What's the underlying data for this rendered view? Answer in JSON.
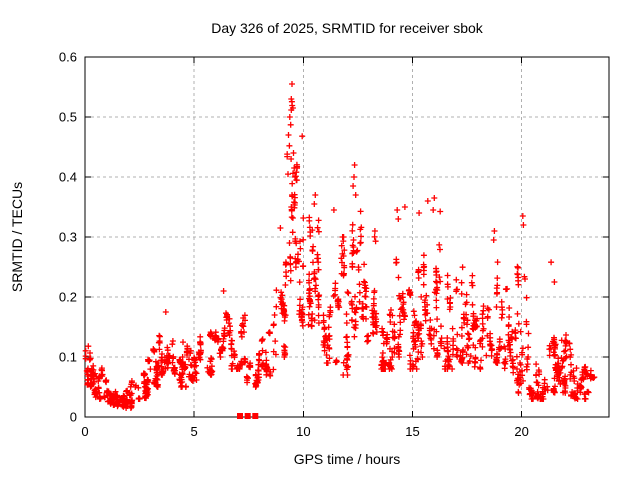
{
  "window": {
    "background": "#ffffff"
  },
  "chart_data": {
    "type": "scatter",
    "title": "Day 326 of 2025, SRMTID for receiver sbok",
    "xlabel": "GPS time / hours",
    "ylabel": "SRMTID / TECUs",
    "xlim": [
      0,
      24
    ],
    "ylim": [
      0,
      0.6
    ],
    "xtick_values": [
      0,
      5,
      10,
      15,
      20
    ],
    "xtick_labels": [
      "0",
      "5",
      "10",
      "15",
      "20"
    ],
    "ytick_values": [
      0,
      0.1,
      0.2,
      0.3,
      0.4,
      0.5,
      0.6
    ],
    "ytick_labels": [
      "0",
      "0.1",
      "0.2",
      "0.3",
      "0.4",
      "0.5",
      "0.6"
    ],
    "grid": {
      "show": true,
      "color": "#b0b0b0",
      "dash": "3,3"
    },
    "frame_color": "#000000",
    "marker": {
      "shape": "plus",
      "size": 7,
      "stroke_width": 1.3,
      "color": "#ff0000"
    },
    "flagged_zero_x": [
      7.1,
      7.45,
      7.8
    ],
    "seed": 326,
    "bin_format": "[hour_start, hour_end, point_count, y_min, y_max] estimated from plot",
    "density_bins": [
      [
        0.0,
        0.3,
        35,
        0.045,
        0.115
      ],
      [
        0.3,
        0.8,
        55,
        0.03,
        0.095
      ],
      [
        0.8,
        1.5,
        70,
        0.02,
        0.075
      ],
      [
        1.5,
        2.3,
        70,
        0.015,
        0.06
      ],
      [
        2.3,
        2.9,
        45,
        0.03,
        0.085
      ],
      [
        2.9,
        3.4,
        45,
        0.05,
        0.125
      ],
      [
        3.4,
        4.1,
        55,
        0.07,
        0.175
      ],
      [
        4.1,
        4.7,
        45,
        0.05,
        0.125
      ],
      [
        4.7,
        5.4,
        45,
        0.06,
        0.135
      ],
      [
        5.4,
        6.0,
        40,
        0.07,
        0.15
      ],
      [
        6.0,
        6.7,
        45,
        0.1,
        0.21
      ],
      [
        6.7,
        7.4,
        45,
        0.08,
        0.18
      ],
      [
        7.4,
        8.1,
        40,
        0.05,
        0.16
      ],
      [
        8.1,
        8.7,
        35,
        0.06,
        0.18
      ],
      [
        8.7,
        9.2,
        35,
        0.1,
        0.32
      ],
      [
        9.2,
        9.75,
        50,
        0.22,
        0.55
      ],
      [
        9.75,
        10.35,
        55,
        0.15,
        0.36
      ],
      [
        10.35,
        10.9,
        40,
        0.13,
        0.37
      ],
      [
        10.9,
        11.6,
        50,
        0.09,
        0.27
      ],
      [
        11.6,
        12.15,
        45,
        0.07,
        0.3
      ],
      [
        12.15,
        12.75,
        50,
        0.13,
        0.42
      ],
      [
        12.75,
        13.35,
        45,
        0.1,
        0.31
      ],
      [
        13.35,
        14.05,
        50,
        0.08,
        0.26
      ],
      [
        14.05,
        14.65,
        45,
        0.1,
        0.34
      ],
      [
        14.65,
        15.25,
        45,
        0.08,
        0.3
      ],
      [
        15.25,
        15.85,
        45,
        0.1,
        0.35
      ],
      [
        15.85,
        16.35,
        40,
        0.1,
        0.37
      ],
      [
        16.35,
        17.05,
        50,
        0.08,
        0.3
      ],
      [
        17.05,
        17.75,
        45,
        0.09,
        0.26
      ],
      [
        17.75,
        18.45,
        45,
        0.08,
        0.29
      ],
      [
        18.45,
        19.05,
        40,
        0.09,
        0.31
      ],
      [
        19.05,
        19.75,
        45,
        0.07,
        0.22
      ],
      [
        19.75,
        20.35,
        45,
        0.04,
        0.34
      ],
      [
        20.35,
        21.05,
        60,
        0.03,
        0.13
      ],
      [
        21.05,
        21.65,
        45,
        0.04,
        0.16
      ],
      [
        21.65,
        22.35,
        60,
        0.035,
        0.155
      ],
      [
        22.35,
        23.0,
        50,
        0.03,
        0.125
      ],
      [
        23.0,
        23.3,
        12,
        0.04,
        0.09
      ]
    ],
    "extreme_points": [
      [
        9.48,
        0.555
      ],
      [
        9.45,
        0.53
      ],
      [
        9.52,
        0.515
      ],
      [
        9.38,
        0.5
      ],
      [
        9.42,
        0.487
      ],
      [
        9.32,
        0.47
      ],
      [
        9.95,
        0.468
      ],
      [
        9.36,
        0.452
      ],
      [
        9.55,
        0.44
      ],
      [
        9.44,
        0.43
      ],
      [
        9.58,
        0.415
      ],
      [
        9.62,
        0.4
      ],
      [
        12.35,
        0.42
      ],
      [
        12.32,
        0.4
      ],
      [
        12.28,
        0.385
      ],
      [
        12.4,
        0.37
      ],
      [
        10.55,
        0.37
      ],
      [
        10.5,
        0.355
      ],
      [
        16.0,
        0.365
      ],
      [
        15.95,
        0.345
      ],
      [
        15.7,
        0.36
      ],
      [
        14.65,
        0.35
      ],
      [
        14.3,
        0.345
      ],
      [
        15.3,
        0.34
      ],
      [
        20.05,
        0.335
      ],
      [
        20.08,
        0.32
      ],
      [
        14.35,
        0.33
      ],
      [
        18.75,
        0.31
      ],
      [
        18.72,
        0.295
      ],
      [
        11.4,
        0.345
      ],
      [
        8.95,
        0.315
      ],
      [
        21.35,
        0.258
      ],
      [
        21.5,
        0.225
      ],
      [
        6.35,
        0.21
      ],
      [
        3.7,
        0.175
      ],
      [
        0.15,
        0.118
      ]
    ]
  }
}
